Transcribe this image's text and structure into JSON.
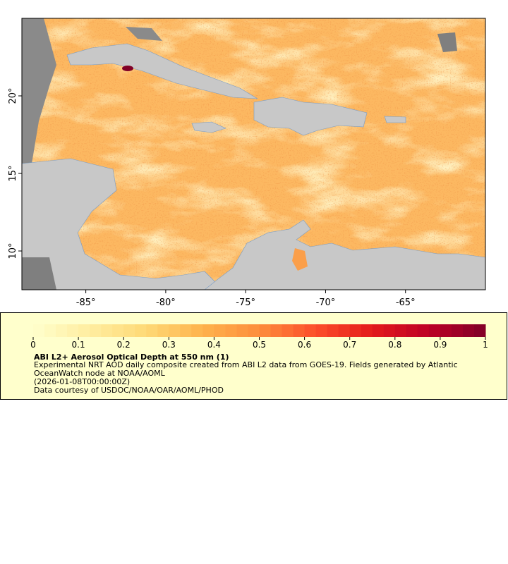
{
  "chart_data": {
    "type": "map",
    "xlim": [
      -89,
      -60
    ],
    "ylim": [
      7.5,
      25
    ],
    "xticks": [
      {
        "value": -85,
        "label": "-85°"
      },
      {
        "value": -80,
        "label": "-80°"
      },
      {
        "value": -75,
        "label": "-75°"
      },
      {
        "value": -70,
        "label": "-70°"
      },
      {
        "value": -65,
        "label": "-65°"
      }
    ],
    "yticks": [
      {
        "value": 10,
        "label": "10°"
      },
      {
        "value": 15,
        "label": "15°"
      },
      {
        "value": 20,
        "label": "20°"
      }
    ],
    "colorbar": {
      "lim": [
        0,
        1
      ],
      "ticks": [
        0,
        0.1,
        0.2,
        0.3,
        0.4,
        0.5,
        0.6,
        0.7,
        0.8,
        0.9,
        1
      ],
      "colors": [
        "#ffffcc",
        "#ffeda0",
        "#fed976",
        "#feb24c",
        "#fd8d3c",
        "#fc4e2a",
        "#e31a1c",
        "#bd0026",
        "#800026"
      ]
    },
    "title": "ABI L2+ Aerosol Optical Depth at 550 nm (1)",
    "description": "Experimental NRT AOD daily composite created from ABI L2 data from GOES-19. Fields generated by Atlantic OceanWatch node at NOAA/AOML",
    "time": "(2026-01-08T00:00:00Z)",
    "credit": "Data courtesy of USDOC/NOAA/OAR/AOML/PHOD"
  }
}
